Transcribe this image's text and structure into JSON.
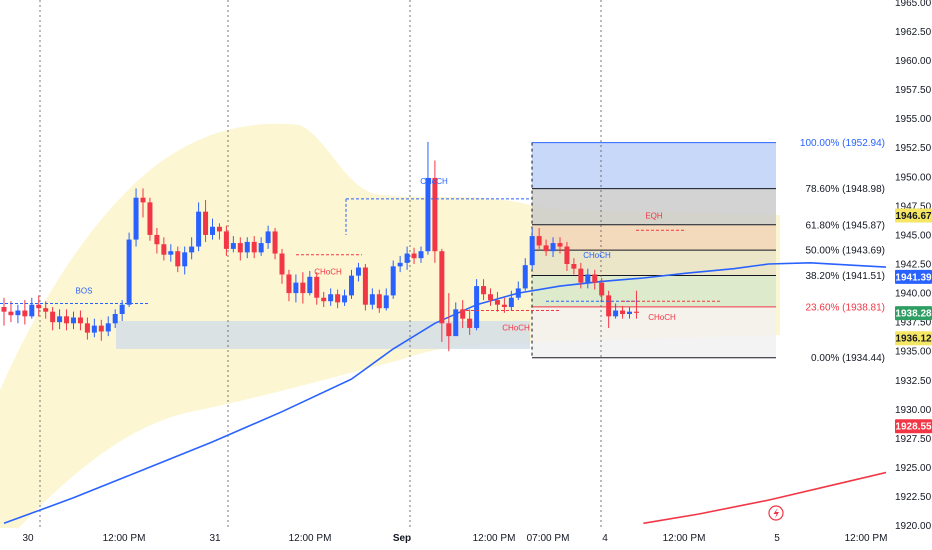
{
  "chart_data": {
    "type": "candlestick",
    "x_ticks": [
      "30",
      "12:00 PM",
      "31",
      "12:00 PM",
      "Sep",
      "12:00 PM",
      "07:00 PM",
      "4",
      "12:00 PM",
      "5",
      "12:00 PM"
    ],
    "y_ticks": [
      "1965.00",
      "1962.50",
      "1960.00",
      "1957.50",
      "1955.00",
      "1952.50",
      "1950.00",
      "1947.50",
      "1945.00",
      "1942.50",
      "1940.00",
      "1937.50",
      "1935.00",
      "1932.50",
      "1930.00",
      "1927.50",
      "1925.00",
      "1922.50",
      "1920.00"
    ],
    "ylim": [
      1919.8,
      1965.2
    ],
    "candles": [
      [
        1938.8,
        1938.4,
        1939.6,
        1937.2
      ],
      [
        1938.4,
        1938.1,
        1939.3,
        1937.5
      ],
      [
        1938.1,
        1938.5,
        1939.0,
        1937.4
      ],
      [
        1938.5,
        1938.0,
        1939.4,
        1937.3
      ],
      [
        1938.0,
        1939.0,
        1939.6,
        1937.8
      ],
      [
        1939.0,
        1938.7,
        1939.8,
        1938.0
      ],
      [
        1938.7,
        1938.4,
        1939.3,
        1937.8
      ],
      [
        1938.4,
        1937.5,
        1938.8,
        1936.8
      ],
      [
        1937.5,
        1938.0,
        1938.6,
        1936.9
      ],
      [
        1938.0,
        1937.4,
        1938.6,
        1936.8
      ],
      [
        1937.4,
        1937.9,
        1938.4,
        1936.9
      ],
      [
        1937.9,
        1937.4,
        1938.5,
        1936.8
      ],
      [
        1937.4,
        1936.6,
        1937.9,
        1936.0
      ],
      [
        1936.6,
        1937.2,
        1937.8,
        1936.2
      ],
      [
        1937.2,
        1936.7,
        1937.7,
        1935.9
      ],
      [
        1936.7,
        1937.4,
        1938.0,
        1936.3
      ],
      [
        1937.4,
        1938.2,
        1938.6,
        1937.0
      ],
      [
        1938.2,
        1939.0,
        1939.4,
        1937.6
      ],
      [
        1939.0,
        1944.6,
        1945.2,
        1938.8
      ],
      [
        1944.6,
        1948.2,
        1949.0,
        1944.0
      ],
      [
        1948.2,
        1947.8,
        1949.0,
        1946.5
      ],
      [
        1947.8,
        1945.0,
        1948.2,
        1944.5
      ],
      [
        1945.0,
        1944.2,
        1945.6,
        1943.4
      ],
      [
        1944.2,
        1943.3,
        1944.8,
        1942.8
      ],
      [
        1943.3,
        1943.6,
        1944.2,
        1942.7
      ],
      [
        1943.6,
        1942.3,
        1944.0,
        1941.8
      ],
      [
        1942.3,
        1943.5,
        1944.0,
        1941.6
      ],
      [
        1943.5,
        1944.0,
        1944.8,
        1942.9
      ],
      [
        1944.0,
        1947.0,
        1947.8,
        1943.6
      ],
      [
        1947.0,
        1945.0,
        1948.0,
        1944.4
      ],
      [
        1945.0,
        1945.7,
        1946.4,
        1944.6
      ],
      [
        1945.7,
        1945.3,
        1946.0,
        1944.6
      ],
      [
        1945.3,
        1943.8,
        1945.8,
        1943.2
      ],
      [
        1943.8,
        1944.3,
        1944.9,
        1943.5
      ],
      [
        1944.3,
        1943.5,
        1944.8,
        1942.8
      ],
      [
        1943.5,
        1944.4,
        1944.8,
        1943.0
      ],
      [
        1944.4,
        1943.5,
        1944.9,
        1943.0
      ],
      [
        1943.5,
        1944.3,
        1944.8,
        1943.2
      ],
      [
        1944.3,
        1945.3,
        1945.8,
        1943.8
      ],
      [
        1945.3,
        1943.4,
        1945.6,
        1942.9
      ],
      [
        1943.4,
        1941.6,
        1943.8,
        1940.8
      ],
      [
        1941.6,
        1940.0,
        1942.0,
        1939.3
      ],
      [
        1940.0,
        1940.9,
        1941.6,
        1939.2
      ],
      [
        1940.9,
        1940.0,
        1941.8,
        1939.1
      ],
      [
        1940.0,
        1941.4,
        1941.9,
        1939.8
      ],
      [
        1941.4,
        1939.6,
        1941.8,
        1939.0
      ],
      [
        1939.6,
        1939.3,
        1940.1,
        1938.8
      ],
      [
        1939.3,
        1939.9,
        1940.4,
        1938.9
      ],
      [
        1939.9,
        1939.2,
        1940.3,
        1938.7
      ],
      [
        1939.2,
        1939.8,
        1940.3,
        1938.9
      ],
      [
        1939.8,
        1941.5,
        1942.0,
        1939.5
      ],
      [
        1941.5,
        1942.2,
        1942.6,
        1941.0
      ],
      [
        1942.2,
        1939.0,
        1942.5,
        1938.5
      ],
      [
        1939.0,
        1939.9,
        1940.4,
        1938.6
      ],
      [
        1939.9,
        1938.7,
        1940.3,
        1938.3
      ],
      [
        1938.7,
        1939.8,
        1940.4,
        1938.5
      ],
      [
        1939.8,
        1942.3,
        1942.8,
        1939.5
      ],
      [
        1942.3,
        1942.6,
        1943.2,
        1941.8
      ],
      [
        1942.6,
        1943.4,
        1944.0,
        1942.0
      ],
      [
        1943.4,
        1943.0,
        1943.9,
        1942.5
      ],
      [
        1943.0,
        1943.6,
        1944.0,
        1942.6
      ],
      [
        1943.6,
        1949.9,
        1953.0,
        1943.3
      ],
      [
        1949.9,
        1943.6,
        1951.4,
        1942.6
      ],
      [
        1943.6,
        1937.4,
        1943.8,
        1935.8
      ],
      [
        1937.4,
        1936.3,
        1940.0,
        1935.0
      ],
      [
        1936.3,
        1938.6,
        1939.2,
        1936.8
      ],
      [
        1938.6,
        1937.8,
        1939.4,
        1937.0
      ],
      [
        1937.8,
        1937.0,
        1938.6,
        1936.4
      ],
      [
        1937.0,
        1940.6,
        1941.2,
        1936.8
      ],
      [
        1940.6,
        1939.9,
        1941.2,
        1939.4
      ],
      [
        1939.9,
        1939.4,
        1940.4,
        1938.9
      ],
      [
        1939.4,
        1939.0,
        1940.1,
        1938.4
      ],
      [
        1939.0,
        1938.8,
        1939.6,
        1938.3
      ],
      [
        1938.8,
        1939.6,
        1940.2,
        1938.5
      ],
      [
        1939.6,
        1940.4,
        1941.0,
        1939.4
      ],
      [
        1940.4,
        1942.4,
        1943.0,
        1940.2
      ],
      [
        1942.4,
        1944.9,
        1945.6,
        1942.0
      ],
      [
        1944.9,
        1944.1,
        1945.6,
        1943.8
      ],
      [
        1944.1,
        1943.6,
        1944.6,
        1943.2
      ],
      [
        1943.6,
        1944.3,
        1944.8,
        1943.1
      ],
      [
        1944.3,
        1944.0,
        1944.8,
        1943.4
      ],
      [
        1944.0,
        1942.5,
        1944.4,
        1941.9
      ],
      [
        1942.5,
        1942.1,
        1943.0,
        1941.6
      ],
      [
        1942.1,
        1940.9,
        1942.6,
        1940.4
      ],
      [
        1940.9,
        1941.6,
        1942.1,
        1940.4
      ],
      [
        1941.6,
        1940.9,
        1942.0,
        1940.3
      ],
      [
        1940.9,
        1939.8,
        1941.3,
        1939.2
      ],
      [
        1939.8,
        1938.0,
        1940.2,
        1937.0
      ],
      [
        1938.0,
        1938.5,
        1939.1,
        1937.8
      ],
      [
        1938.5,
        1938.2,
        1938.9,
        1937.8
      ],
      [
        1938.2,
        1938.4,
        1938.8,
        1937.8
      ],
      [
        1938.4,
        1938.3,
        1940.2,
        1937.8
      ]
    ],
    "ema_blue": [
      [
        0,
        1920.2
      ],
      [
        10,
        1922.4
      ],
      [
        20,
        1924.8
      ],
      [
        30,
        1927.2
      ],
      [
        40,
        1929.8
      ],
      [
        50,
        1932.6
      ],
      [
        56,
        1935.2
      ],
      [
        62,
        1937.4
      ],
      [
        68,
        1939.0
      ],
      [
        74,
        1940.0
      ],
      [
        80,
        1940.6
      ],
      [
        86,
        1941.0
      ],
      [
        92,
        1941.3
      ],
      [
        98,
        1941.7
      ],
      [
        105,
        1942.1
      ],
      [
        110,
        1942.5
      ],
      [
        116,
        1942.6
      ],
      [
        122,
        1942.4
      ],
      [
        128,
        1942.2
      ],
      [
        134,
        1942.0
      ],
      [
        140,
        1941.9
      ],
      [
        146,
        1941.7
      ],
      [
        152,
        1941.5
      ],
      [
        156,
        1941.39
      ]
    ],
    "ema_red": [
      [
        92,
        1920.2
      ],
      [
        100,
        1921.0
      ],
      [
        110,
        1922.2
      ],
      [
        120,
        1923.6
      ],
      [
        130,
        1925.0
      ],
      [
        140,
        1926.5
      ],
      [
        150,
        1927.9
      ],
      [
        156,
        1928.55
      ]
    ],
    "fib": {
      "levels": [
        {
          "pct": "100.00%",
          "value": 1952.94,
          "label": "100.00% (1952.94)",
          "color": "#2962ff"
        },
        {
          "pct": "78.60%",
          "value": 1948.98,
          "label": "78.60% (1948.98)",
          "color": "#131722"
        },
        {
          "pct": "61.80%",
          "value": 1945.87,
          "label": "61.80% (1945.87)",
          "color": "#131722"
        },
        {
          "pct": "50.00%",
          "value": 1943.69,
          "label": "50.00% (1943.69)",
          "color": "#131722"
        },
        {
          "pct": "38.20%",
          "value": 1941.51,
          "label": "38.20% (1941.51)",
          "color": "#131722"
        },
        {
          "pct": "23.60%",
          "value": 1938.81,
          "label": "23.60% (1938.81)",
          "color": "#f23645"
        },
        {
          "pct": "0.00%",
          "value": 1934.44,
          "label": "0.00% (1934.44)",
          "color": "#131722"
        }
      ],
      "zones": [
        "#bbd0f7",
        "#c9c9c9",
        "#f1d3b8",
        "#e6e2c4",
        "#d6e7c9",
        "#f2f0f0",
        "#dcc8ea"
      ]
    },
    "annotations": [
      {
        "text": "BOS",
        "color": "#2962ff"
      },
      {
        "text": "CHoCH",
        "color": "#2962ff"
      },
      {
        "text": "CHoCH",
        "color": "#f23645"
      },
      {
        "text": "CHoCH",
        "color": "#f23645"
      },
      {
        "text": "CHoCH",
        "color": "#2962ff"
      },
      {
        "text": "EQH",
        "color": "#f23645"
      },
      {
        "text": "CHoCH",
        "color": "#f23645"
      }
    ],
    "price_badges": [
      {
        "value": "1946.67",
        "bg": "#f5e663",
        "fg": "#131722"
      },
      {
        "value": "1941.39",
        "bg": "#2962ff",
        "fg": "#ffffff"
      },
      {
        "value": "1938.28",
        "bg": "#2e9e63",
        "fg": "#ffffff"
      },
      {
        "value": "1936.12",
        "bg": "#f5e663",
        "fg": "#131722"
      },
      {
        "value": "1928.55",
        "bg": "#f23645",
        "fg": "#ffffff"
      }
    ],
    "colors": {
      "up": "#2962ff",
      "down": "#f23645",
      "cloud": "#fdf6d3",
      "grid": "#555555"
    }
  }
}
